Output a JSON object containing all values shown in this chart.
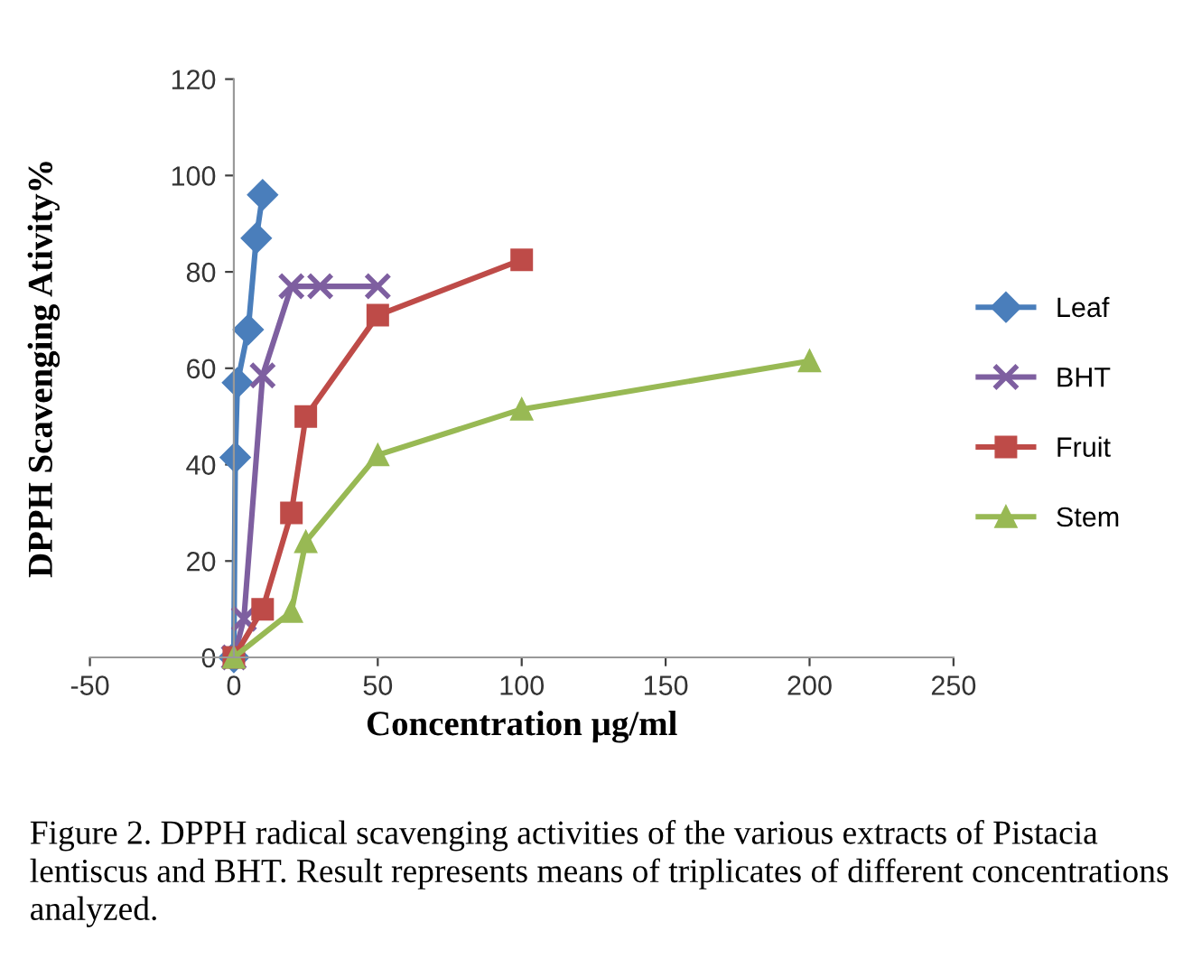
{
  "chart_data": {
    "type": "line",
    "xlabel": "Concentration µg/ml",
    "ylabel": "DPPH Scavenging Ativity%",
    "series": [
      {
        "name": "Leaf",
        "color": "#4a7ebb",
        "marker": "diamond",
        "x": [
          0,
          0.5,
          1.25,
          5,
          7.8,
          10
        ],
        "values": [
          0,
          41.5,
          57,
          68,
          87,
          96
        ]
      },
      {
        "name": "BHT",
        "color": "#7e5fa0",
        "marker": "cross",
        "x": [
          0,
          3.5,
          10,
          20,
          30,
          50
        ],
        "values": [
          0,
          8,
          58.5,
          77,
          77,
          77
        ]
      },
      {
        "name": "Fruit",
        "color": "#be4b48",
        "marker": "square",
        "x": [
          0,
          10,
          20,
          25,
          50,
          100
        ],
        "values": [
          0,
          10,
          30,
          50,
          71,
          82.5
        ]
      },
      {
        "name": "Stem",
        "color": "#98b954",
        "marker": "triangle",
        "x": [
          0,
          20,
          25,
          50,
          100,
          200
        ],
        "values": [
          0,
          9.5,
          24,
          42,
          51.5,
          61.5
        ]
      }
    ],
    "xlim": [
      -50,
      250
    ],
    "xticks": [
      -50,
      0,
      50,
      100,
      150,
      200,
      250
    ],
    "ylim": [
      0,
      120
    ],
    "yticks": [
      0,
      20,
      40,
      60,
      80,
      100,
      120
    ],
    "grid": false,
    "legend": "right",
    "annotations": [
      "Figure 2. DPPH radical scavenging activities of the various extracts of Pistacia lentiscus and BHT. Result represents means of triplicates of different concentrations analyzed."
    ]
  }
}
